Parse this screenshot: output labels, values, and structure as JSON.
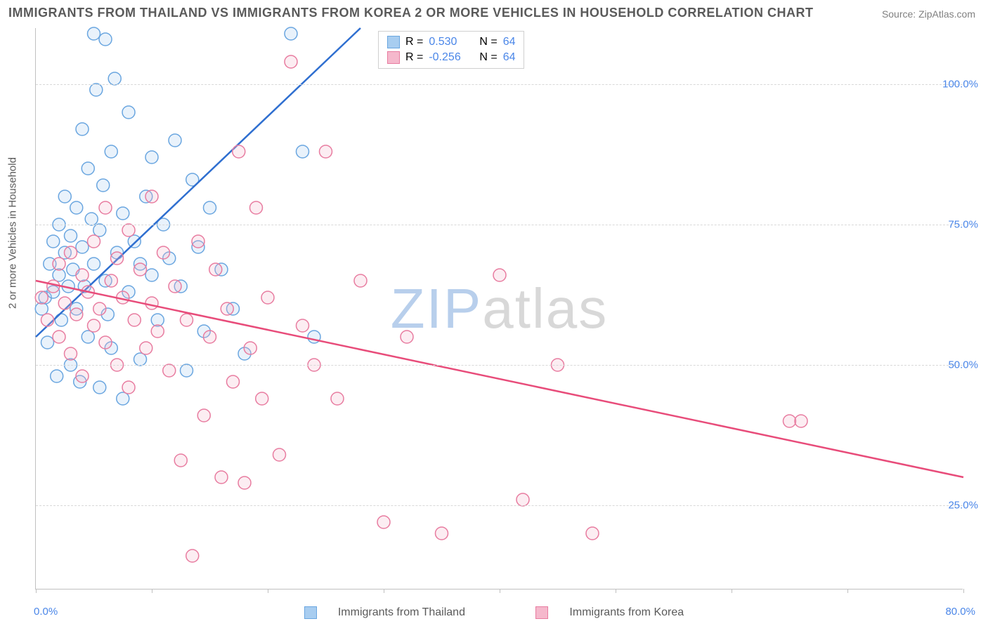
{
  "title": "IMMIGRANTS FROM THAILAND VS IMMIGRANTS FROM KOREA 2 OR MORE VEHICLES IN HOUSEHOLD CORRELATION CHART",
  "source": "Source: ZipAtlas.com",
  "watermark_a": "ZIP",
  "watermark_b": "atlas",
  "chart": {
    "type": "scatter",
    "ylabel": "2 or more Vehicles in Household",
    "xlim": [
      0,
      80
    ],
    "ylim": [
      10,
      110
    ],
    "x_ticks": [
      0,
      10,
      20,
      30,
      40,
      50,
      60,
      70,
      80
    ],
    "x_tick_labels": {
      "0": "0.0%",
      "80": "80.0%"
    },
    "y_gridlines": [
      25,
      50,
      75,
      100
    ],
    "y_tick_labels": {
      "25": "25.0%",
      "50": "50.0%",
      "75": "75.0%",
      "100": "100.0%"
    },
    "background_color": "#ffffff",
    "grid_color": "#d8d8d8",
    "axis_color": "#c0c0c0",
    "marker_radius": 9,
    "marker_stroke_width": 1.5,
    "marker_fill_opacity": 0.25,
    "line_width": 2.5,
    "series": [
      {
        "name": "Immigrants from Thailand",
        "color_stroke": "#6aa6e0",
        "color_fill": "#a8cdf0",
        "line_color": "#2f6fd0",
        "R": "0.530",
        "N": "64",
        "regression": {
          "x1": 0,
          "y1": 55,
          "x2": 28,
          "y2": 110
        },
        "points": [
          [
            0.5,
            60
          ],
          [
            0.8,
            62
          ],
          [
            1.0,
            54
          ],
          [
            1.2,
            68
          ],
          [
            1.5,
            63
          ],
          [
            1.5,
            72
          ],
          [
            1.8,
            48
          ],
          [
            2.0,
            66
          ],
          [
            2.0,
            75
          ],
          [
            2.2,
            58
          ],
          [
            2.5,
            70
          ],
          [
            2.5,
            80
          ],
          [
            2.8,
            64
          ],
          [
            3.0,
            50
          ],
          [
            3.0,
            73
          ],
          [
            3.2,
            67
          ],
          [
            3.5,
            78
          ],
          [
            3.5,
            60
          ],
          [
            3.8,
            47
          ],
          [
            4.0,
            71
          ],
          [
            4.0,
            92
          ],
          [
            4.2,
            64
          ],
          [
            4.5,
            55
          ],
          [
            4.5,
            85
          ],
          [
            4.8,
            76
          ],
          [
            5.0,
            109
          ],
          [
            5.0,
            68
          ],
          [
            5.2,
            99
          ],
          [
            5.5,
            74
          ],
          [
            5.5,
            46
          ],
          [
            5.8,
            82
          ],
          [
            6.0,
            65
          ],
          [
            6.0,
            108
          ],
          [
            6.2,
            59
          ],
          [
            6.5,
            88
          ],
          [
            6.5,
            53
          ],
          [
            6.8,
            101
          ],
          [
            7.0,
            70
          ],
          [
            7.5,
            77
          ],
          [
            7.5,
            44
          ],
          [
            8.0,
            63
          ],
          [
            8.0,
            95
          ],
          [
            8.5,
            72
          ],
          [
            9.0,
            68
          ],
          [
            9.0,
            51
          ],
          [
            9.5,
            80
          ],
          [
            10.0,
            66
          ],
          [
            10.0,
            87
          ],
          [
            10.5,
            58
          ],
          [
            11.0,
            75
          ],
          [
            11.5,
            69
          ],
          [
            12.0,
            90
          ],
          [
            12.5,
            64
          ],
          [
            13.0,
            49
          ],
          [
            13.5,
            83
          ],
          [
            14.0,
            71
          ],
          [
            14.5,
            56
          ],
          [
            15.0,
            78
          ],
          [
            16.0,
            67
          ],
          [
            17.0,
            60
          ],
          [
            18.0,
            52
          ],
          [
            22.0,
            109
          ],
          [
            23.0,
            88
          ],
          [
            24.0,
            55
          ]
        ]
      },
      {
        "name": "Immigrants from Korea",
        "color_stroke": "#e87ca0",
        "color_fill": "#f5b8cc",
        "line_color": "#e84c7a",
        "R": "-0.256",
        "N": "64",
        "regression": {
          "x1": 0,
          "y1": 65,
          "x2": 80,
          "y2": 30
        },
        "points": [
          [
            0.5,
            62
          ],
          [
            1.0,
            58
          ],
          [
            1.5,
            64
          ],
          [
            2.0,
            55
          ],
          [
            2.0,
            68
          ],
          [
            2.5,
            61
          ],
          [
            3.0,
            70
          ],
          [
            3.0,
            52
          ],
          [
            3.5,
            59
          ],
          [
            4.0,
            66
          ],
          [
            4.0,
            48
          ],
          [
            4.5,
            63
          ],
          [
            5.0,
            57
          ],
          [
            5.0,
            72
          ],
          [
            5.5,
            60
          ],
          [
            6.0,
            54
          ],
          [
            6.0,
            78
          ],
          [
            6.5,
            65
          ],
          [
            7.0,
            50
          ],
          [
            7.0,
            69
          ],
          [
            7.5,
            62
          ],
          [
            8.0,
            46
          ],
          [
            8.0,
            74
          ],
          [
            8.5,
            58
          ],
          [
            9.0,
            67
          ],
          [
            9.5,
            53
          ],
          [
            10.0,
            80
          ],
          [
            10.0,
            61
          ],
          [
            10.5,
            56
          ],
          [
            11.0,
            70
          ],
          [
            11.5,
            49
          ],
          [
            12.0,
            64
          ],
          [
            12.5,
            33
          ],
          [
            13.0,
            58
          ],
          [
            13.5,
            16
          ],
          [
            14.0,
            72
          ],
          [
            14.5,
            41
          ],
          [
            15.0,
            55
          ],
          [
            15.5,
            67
          ],
          [
            16.0,
            30
          ],
          [
            16.5,
            60
          ],
          [
            17.0,
            47
          ],
          [
            17.5,
            88
          ],
          [
            18.0,
            29
          ],
          [
            18.5,
            53
          ],
          [
            19.0,
            78
          ],
          [
            19.5,
            44
          ],
          [
            20.0,
            62
          ],
          [
            21.0,
            34
          ],
          [
            22.0,
            104
          ],
          [
            23.0,
            57
          ],
          [
            24.0,
            50
          ],
          [
            25.0,
            88
          ],
          [
            26.0,
            44
          ],
          [
            28.0,
            65
          ],
          [
            30.0,
            22
          ],
          [
            32.0,
            55
          ],
          [
            35.0,
            20
          ],
          [
            40.0,
            66
          ],
          [
            42.0,
            26
          ],
          [
            45.0,
            50
          ],
          [
            48.0,
            20
          ],
          [
            65.0,
            40
          ],
          [
            66.0,
            40
          ]
        ]
      }
    ]
  },
  "legend_top": {
    "r_label": "R =",
    "n_label": "N ="
  },
  "legend_bottom": {
    "items": [
      "Immigrants from Thailand",
      "Immigrants from Korea"
    ]
  }
}
